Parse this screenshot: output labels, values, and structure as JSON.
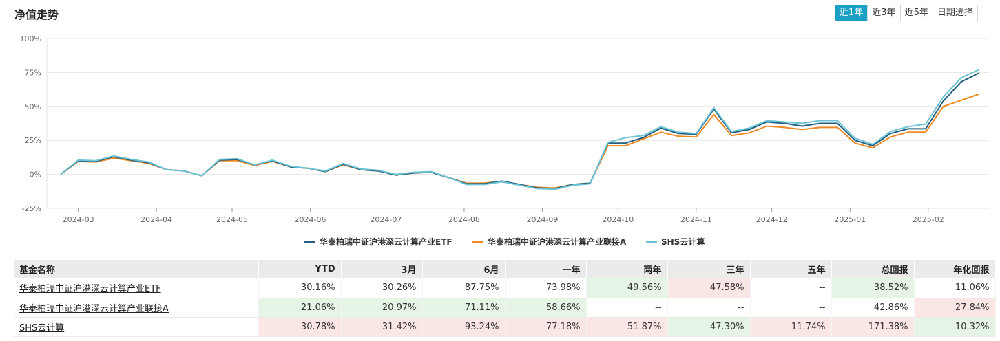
{
  "header": {
    "title": "净值走势",
    "range_tabs": [
      "近1年",
      "近3年",
      "近5年",
      "日期选择"
    ],
    "active_tab": 0
  },
  "colors": {
    "accent": "#1aa0c4",
    "up": "#d43f3a",
    "down": "#2e9a2e",
    "bg_up": "#fbe6e6",
    "bg_down": "#e6f4e6"
  },
  "chart_data": {
    "type": "line",
    "y_ticks": [
      "100%",
      "75%",
      "50%",
      "25%",
      "0%",
      "-25%"
    ],
    "ylim": [
      -25,
      100
    ],
    "x_ticks": [
      "2024-03",
      "2024-04",
      "2024-05",
      "2024-06",
      "2024-07",
      "2024-08",
      "2024-09",
      "2024-10",
      "2024-11",
      "2024-12",
      "2025-01",
      "2025-02"
    ],
    "x_tick_dates": [
      "2024-03-01",
      "2024-04-01",
      "2024-05-01",
      "2024-06-01",
      "2024-07-01",
      "2024-08-01",
      "2024-09-01",
      "2024-10-01",
      "2024-11-01",
      "2024-12-01",
      "2025-01-01",
      "2025-02-01"
    ],
    "x": [
      "2024-02-23",
      "2024-03-01",
      "2024-03-08",
      "2024-03-15",
      "2024-03-22",
      "2024-03-29",
      "2024-04-05",
      "2024-04-12",
      "2024-04-19",
      "2024-04-26",
      "2024-05-03",
      "2024-05-10",
      "2024-05-17",
      "2024-05-24",
      "2024-05-31",
      "2024-06-07",
      "2024-06-14",
      "2024-06-21",
      "2024-06-28",
      "2024-07-05",
      "2024-07-12",
      "2024-07-19",
      "2024-07-26",
      "2024-08-02",
      "2024-08-09",
      "2024-08-16",
      "2024-08-23",
      "2024-08-30",
      "2024-09-06",
      "2024-09-13",
      "2024-09-20",
      "2024-09-27",
      "2024-10-04",
      "2024-10-11",
      "2024-10-18",
      "2024-10-25",
      "2024-11-01",
      "2024-11-08",
      "2024-11-15",
      "2024-11-22",
      "2024-11-29",
      "2024-12-06",
      "2024-12-13",
      "2024-12-20",
      "2024-12-27",
      "2025-01-03",
      "2025-01-10",
      "2025-01-17",
      "2025-01-24",
      "2025-01-31",
      "2025-02-07",
      "2025-02-14",
      "2025-02-21"
    ],
    "series": [
      {
        "name": "华泰柏瑞中证沪港深云计算产业ETF",
        "color": "#23607e",
        "values": [
          0,
          10,
          9.5,
          13,
          10.5,
          8.5,
          3.5,
          2.5,
          -1,
          10.5,
          11,
          7,
          10,
          5.5,
          4.5,
          2,
          7.5,
          3.5,
          2.5,
          -0.5,
          1,
          1.5,
          -2.5,
          -7,
          -7,
          -5,
          -7.5,
          -10,
          -10.5,
          -7.5,
          -6.5,
          23,
          23,
          27,
          34,
          30,
          29.5,
          48,
          30.5,
          33,
          38.5,
          37.5,
          35.5,
          37.5,
          37.5,
          25,
          21,
          30,
          33.5,
          33.5,
          54,
          68,
          74.5
        ]
      },
      {
        "name": "华泰柏瑞中证沪港深云计算产业联接A",
        "color": "#ee8a25",
        "values": [
          0,
          9.5,
          9,
          12,
          10,
          8,
          3.5,
          2.5,
          -1,
          10,
          10,
          6.5,
          9.5,
          5.5,
          4.5,
          2,
          7,
          3.5,
          2.5,
          -0.5,
          1,
          1.5,
          -2.5,
          -6.5,
          -6.5,
          -5,
          -7.5,
          -9.5,
          -10,
          -7.5,
          -6.5,
          21,
          21,
          26,
          31,
          28,
          27.5,
          44,
          28.5,
          30.5,
          35.5,
          34.5,
          33,
          34.5,
          34.5,
          23,
          19.5,
          27.5,
          31,
          31,
          50,
          54.5,
          59
        ]
      },
      {
        "name": "SHS云计算",
        "color": "#6cc3d6",
        "values": [
          0,
          10.5,
          10,
          13.5,
          11,
          9,
          3.5,
          2.5,
          -1,
          11,
          11.5,
          7,
          10.5,
          6,
          4.5,
          2.5,
          8,
          4,
          3,
          0,
          1.5,
          2,
          -2.5,
          -7.5,
          -7.5,
          -5.5,
          -8,
          -10.5,
          -11,
          -8,
          -7,
          23.5,
          27,
          28.5,
          35,
          31,
          30,
          49,
          31.5,
          34,
          39.5,
          38.5,
          37.5,
          39.5,
          39.5,
          26.5,
          22,
          31.5,
          35,
          37,
          57,
          71,
          77
        ]
      }
    ]
  },
  "table": {
    "headers": [
      "基金名称",
      "YTD",
      "3月",
      "6月",
      "一年",
      "两年",
      "三年",
      "五年",
      "总回报",
      "年化回报"
    ],
    "rows": [
      {
        "name": "华泰柏瑞中证沪港深云计算产业ETF",
        "cells": [
          {
            "v": "30.16%",
            "c": "neutral",
            "bg": "none"
          },
          {
            "v": "30.26%",
            "c": "neutral",
            "bg": "none"
          },
          {
            "v": "87.75%",
            "c": "neutral",
            "bg": "none"
          },
          {
            "v": "73.98%",
            "c": "neutral",
            "bg": "none"
          },
          {
            "v": "49.56%",
            "c": "down",
            "bg": "green"
          },
          {
            "v": "47.58%",
            "c": "up",
            "bg": "red"
          },
          {
            "v": "--",
            "c": "neutral",
            "bg": "none"
          },
          {
            "v": "38.52%",
            "c": "down",
            "bg": "green"
          },
          {
            "v": "11.06%",
            "c": "neutral",
            "bg": "none"
          }
        ]
      },
      {
        "name": "华泰柏瑞中证沪港深云计算产业联接A",
        "cells": [
          {
            "v": "21.06%",
            "c": "down",
            "bg": "green"
          },
          {
            "v": "20.97%",
            "c": "down",
            "bg": "green"
          },
          {
            "v": "71.11%",
            "c": "down",
            "bg": "green"
          },
          {
            "v": "58.66%",
            "c": "down",
            "bg": "green"
          },
          {
            "v": "--",
            "c": "neutral",
            "bg": "none"
          },
          {
            "v": "--",
            "c": "neutral",
            "bg": "none"
          },
          {
            "v": "--",
            "c": "neutral",
            "bg": "none"
          },
          {
            "v": "42.86%",
            "c": "neutral",
            "bg": "none"
          },
          {
            "v": "27.84%",
            "c": "up",
            "bg": "red"
          }
        ]
      },
      {
        "name": "SHS云计算",
        "cells": [
          {
            "v": "30.78%",
            "c": "up",
            "bg": "red"
          },
          {
            "v": "31.42%",
            "c": "up",
            "bg": "red"
          },
          {
            "v": "93.24%",
            "c": "up",
            "bg": "red"
          },
          {
            "v": "77.18%",
            "c": "up",
            "bg": "red"
          },
          {
            "v": "51.87%",
            "c": "up",
            "bg": "red"
          },
          {
            "v": "47.30%",
            "c": "down",
            "bg": "green"
          },
          {
            "v": "11.74%",
            "c": "up",
            "bg": "red"
          },
          {
            "v": "171.38%",
            "c": "up",
            "bg": "red"
          },
          {
            "v": "10.32%",
            "c": "down",
            "bg": "green"
          }
        ]
      }
    ]
  }
}
